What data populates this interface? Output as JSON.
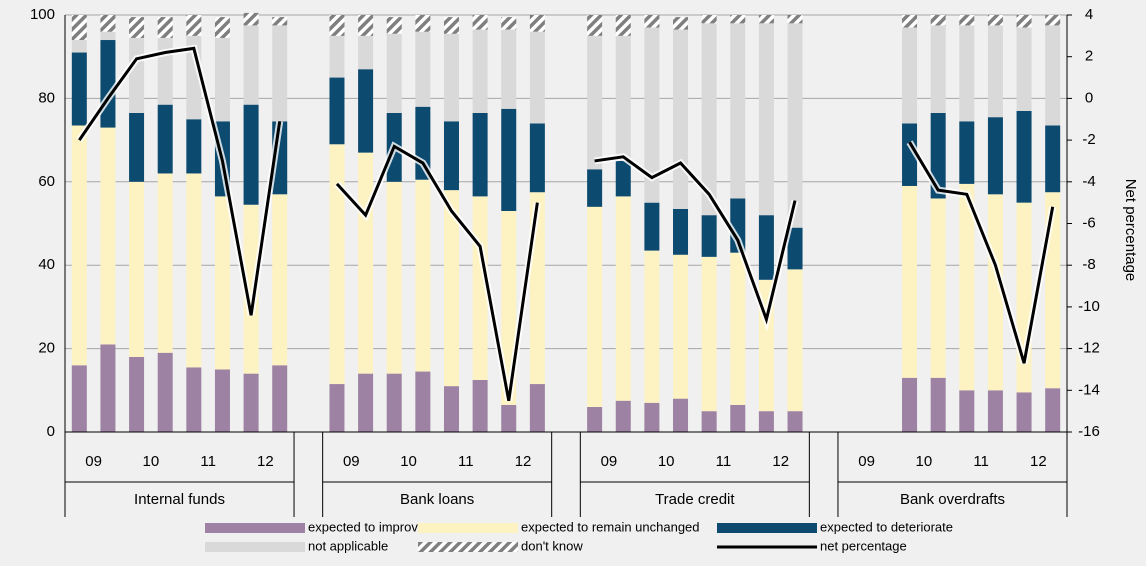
{
  "chart_data": {
    "type": "bar",
    "y2label": "Net percentage",
    "groups": [
      {
        "name": "Internal funds",
        "years": [
          "09",
          "10",
          "11",
          "12"
        ]
      },
      {
        "name": "Bank loans",
        "years": [
          "09",
          "10",
          "11",
          "12"
        ]
      },
      {
        "name": "Trade credit",
        "years": [
          "09",
          "10",
          "11",
          "12"
        ]
      },
      {
        "name": "Bank overdrafts",
        "years": [
          "09",
          "10",
          "11",
          "12"
        ]
      }
    ],
    "ylim": [
      0,
      100
    ],
    "yticks": [
      0,
      20,
      40,
      60,
      80,
      100
    ],
    "y2lim": [
      -16,
      4
    ],
    "y2ticks": [
      -16,
      -14,
      -12,
      -10,
      -8,
      -6,
      -4,
      -2,
      0,
      2,
      4
    ],
    "grid": true,
    "series": [
      {
        "name": "expected to improve",
        "color": "#9d82a3",
        "values": [
          16,
          21,
          18,
          19,
          15.5,
          15,
          14,
          16,
          null,
          11.5,
          14,
          14,
          14.5,
          11,
          12.5,
          6.5,
          11.5,
          null,
          6,
          7.5,
          7,
          8,
          5,
          6.5,
          5,
          5,
          null,
          null,
          null,
          13,
          13,
          10,
          10,
          9.5,
          10.5
        ]
      },
      {
        "name": "expected to remain unchanged",
        "color": "#fdf3c2",
        "values": [
          57.5,
          52,
          42,
          43,
          46.5,
          41.5,
          40.5,
          41,
          null,
          57.5,
          53,
          46,
          46,
          47,
          44,
          46.5,
          46,
          null,
          48,
          49,
          36.5,
          34.5,
          37,
          36.5,
          31.5,
          34,
          null,
          null,
          null,
          46,
          43,
          49.5,
          47,
          45.5,
          47
        ]
      },
      {
        "name": "expected to deteriorate",
        "color": "#0d4a70",
        "values": [
          17.5,
          21,
          16.5,
          16.5,
          13,
          18,
          24,
          17.5,
          null,
          16,
          20,
          16.5,
          17.5,
          16.5,
          20,
          24.5,
          16.5,
          null,
          9,
          8.5,
          11.5,
          11,
          10,
          13,
          15.5,
          10,
          null,
          null,
          null,
          15,
          20.5,
          15,
          18.5,
          22,
          16
        ]
      },
      {
        "name": "not applicable",
        "color": "#d9d9d9",
        "values": [
          3,
          2,
          18,
          16,
          20,
          20,
          19,
          23,
          null,
          10,
          8,
          19,
          18,
          21,
          20,
          19,
          22,
          null,
          32,
          30,
          42,
          43,
          46,
          42,
          46,
          49,
          null,
          null,
          null,
          23,
          21,
          23,
          22,
          20,
          24
        ]
      },
      {
        "name": "don't know",
        "color": "#7f7f7f",
        "values": [
          6,
          4,
          5,
          5,
          5,
          5,
          3,
          2,
          null,
          5,
          5,
          4,
          4,
          4,
          3.5,
          3,
          4,
          null,
          5,
          5,
          3,
          3,
          2,
          2,
          2,
          2,
          null,
          null,
          null,
          3,
          2.5,
          2.5,
          2.5,
          3,
          2.5
        ]
      },
      {
        "name": "net percentage",
        "color": "#000000",
        "axis": "y2",
        "values": [
          -2.0,
          0.0,
          1.9,
          2.2,
          2.4,
          -3.0,
          -10.4,
          -1.1,
          null,
          -4.1,
          -5.6,
          -2.3,
          -3.1,
          -5.4,
          -7.1,
          -14.5,
          -5.0,
          null,
          -3.0,
          -2.8,
          -3.8,
          -3.1,
          -4.6,
          -6.8,
          -10.6,
          -4.9,
          null,
          null,
          null,
          -2.1,
          -4.4,
          -4.6,
          -8.0,
          -12.7,
          -5.2
        ]
      }
    ]
  }
}
